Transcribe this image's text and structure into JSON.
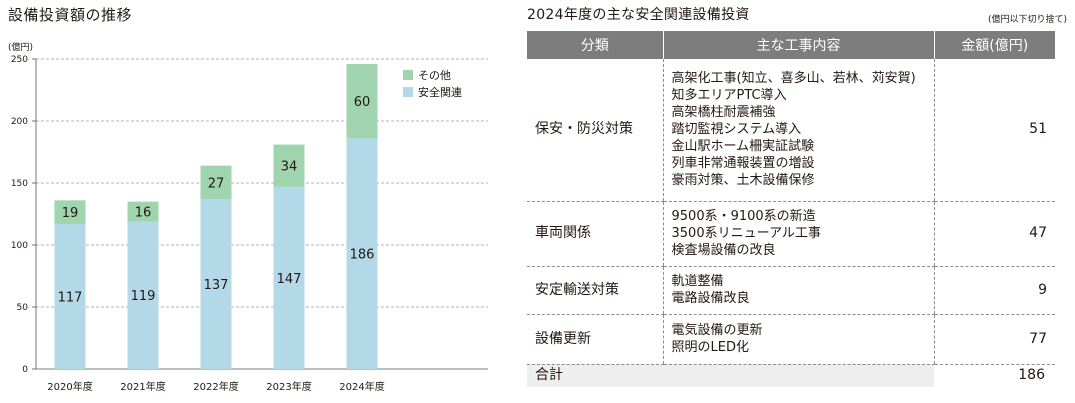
{
  "chart_data": {
    "type": "bar",
    "stacked": true,
    "title": "設備投資額の推移",
    "unit_label": "(億円)",
    "categories": [
      "2020年度",
      "2021年度",
      "2022年度",
      "2023年度",
      "2024年度"
    ],
    "series": [
      {
        "name": "安全関連",
        "values": [
          117,
          119,
          137,
          147,
          186
        ],
        "color": "#b3d8e8"
      },
      {
        "name": "その他",
        "values": [
          19,
          16,
          27,
          34,
          60
        ],
        "color": "#9fd4ae"
      }
    ],
    "yticks": [
      0,
      50,
      100,
      150,
      200,
      250
    ],
    "ylim": [
      0,
      250
    ],
    "grid": true,
    "legend_position": "top-right"
  },
  "table": {
    "title": "2024年度の主な安全関連設備投資",
    "note": "(億円以下切り捨て)",
    "headers": [
      "分類",
      "主な工事内容",
      "金額(億円)"
    ],
    "rows": [
      {
        "category": "保安・防災対策",
        "works": [
          "高架化工事(知立、喜多山、若林、苅安賀)",
          "知多エリアPTC導入",
          "高架橋柱耐震補強",
          "踏切監視システム導入",
          "金山駅ホーム柵実証試験",
          "列車非常通報装置の増設",
          "豪雨対策、土木設備保修"
        ],
        "amount": "51"
      },
      {
        "category": "車両関係",
        "works": [
          "9500系・9100系の新造",
          "3500系リニューアル工事",
          "検査場設備の改良"
        ],
        "amount": "47"
      },
      {
        "category": "安定輸送対策",
        "works": [
          "軌道整備",
          "電路設備改良"
        ],
        "amount": "9"
      },
      {
        "category": "設備更新",
        "works": [
          "電気設備の更新",
          "照明のLED化"
        ],
        "amount": "77"
      }
    ],
    "total_label": "合計",
    "total_amount": "186"
  }
}
